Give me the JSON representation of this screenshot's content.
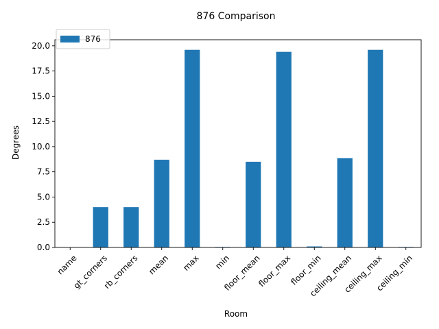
{
  "chart_data": {
    "type": "bar",
    "title": "876 Comparison",
    "xlabel": "Room",
    "ylabel": "Degrees",
    "categories": [
      "name",
      "gt_corners",
      "rb_corners",
      "mean",
      "max",
      "min",
      "floor_mean",
      "floor_max",
      "floor_min",
      "ceiling_mean",
      "ceiling_max",
      "ceiling_min"
    ],
    "series": [
      {
        "name": "876",
        "color": "#1f77b4",
        "values": [
          0,
          4.0,
          4.0,
          8.7,
          19.6,
          0.05,
          8.5,
          19.4,
          0.1,
          8.85,
          19.6,
          0.05
        ]
      }
    ],
    "ylim": [
      0,
      20.6
    ],
    "yticks": [
      0.0,
      2.5,
      5.0,
      7.5,
      10.0,
      12.5,
      15.0,
      17.5,
      20.0
    ],
    "ytick_labels": [
      "0.0",
      "2.5",
      "5.0",
      "7.5",
      "10.0",
      "12.5",
      "15.0",
      "17.5",
      "20.0"
    ],
    "xtick_rotation": 45,
    "grid": false,
    "legend": "upper-left"
  }
}
